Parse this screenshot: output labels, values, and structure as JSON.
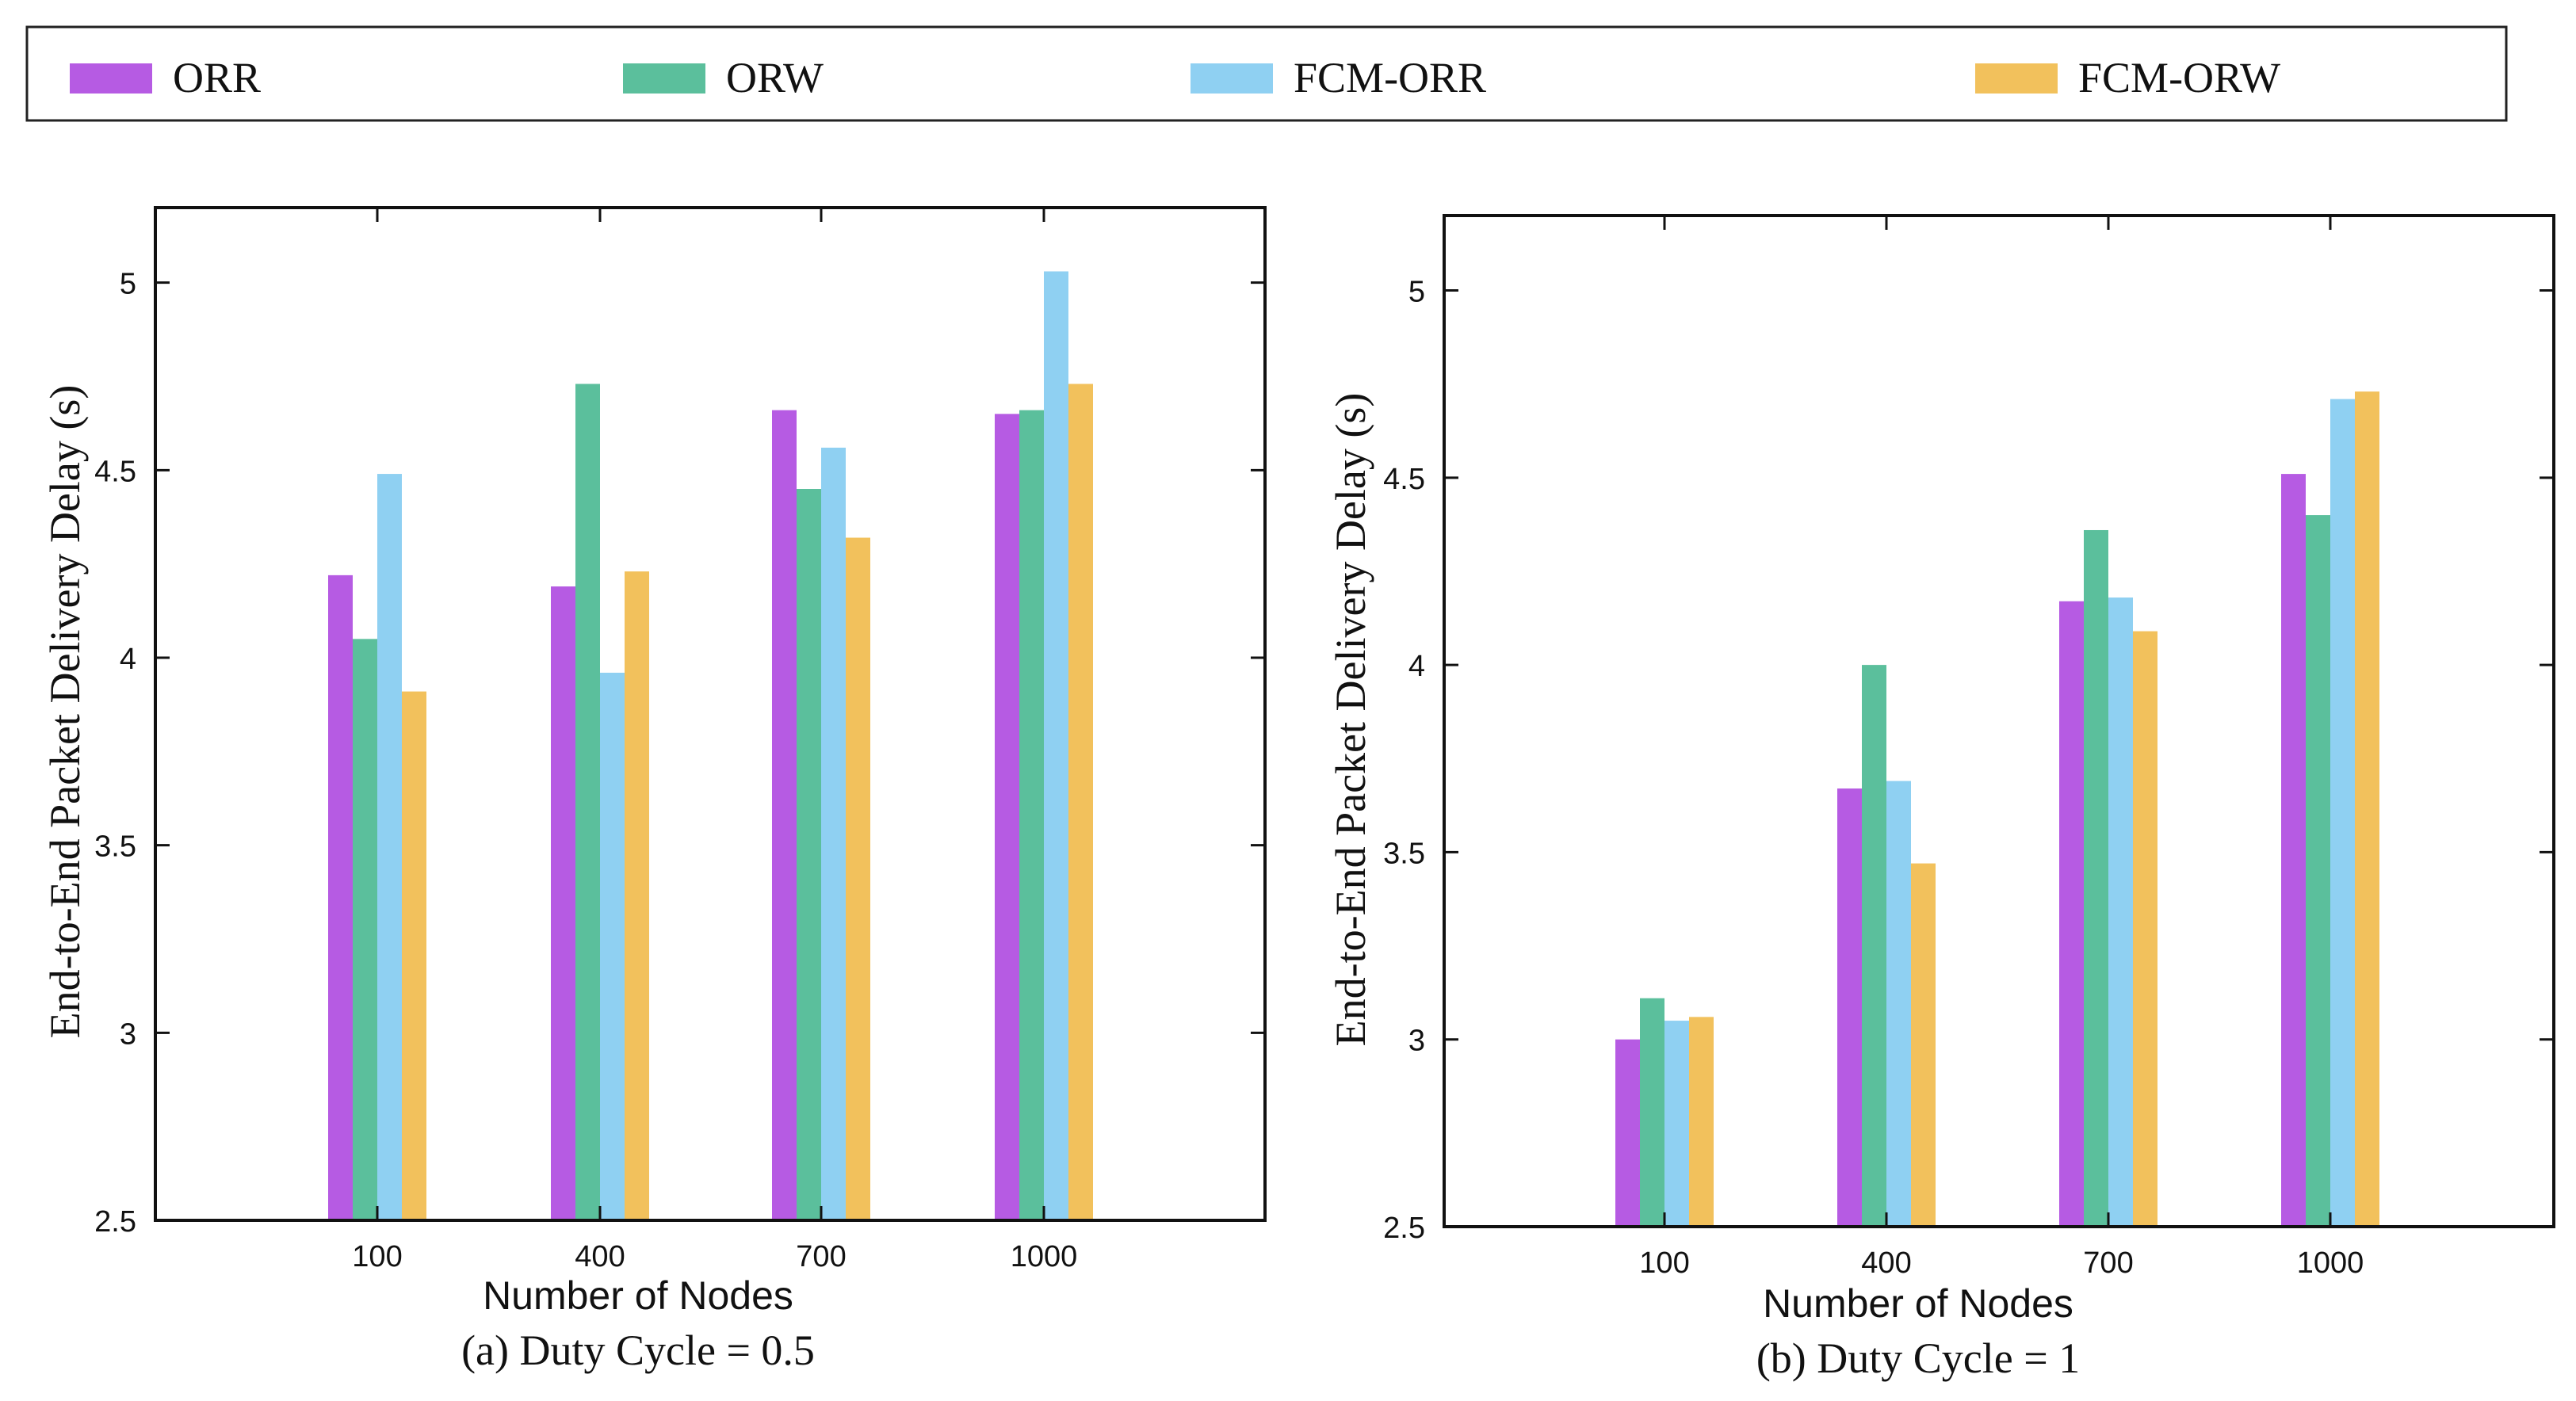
{
  "legend": {
    "items": [
      {
        "label": "ORR",
        "color": "#b65be3"
      },
      {
        "label": "ORW",
        "color": "#5bbf9c"
      },
      {
        "label": "FCM-ORR",
        "color": "#8fd0f2"
      },
      {
        "label": "FCM-ORW",
        "color": "#f2c15c"
      }
    ]
  },
  "chart_data": [
    {
      "type": "bar",
      "subtitle": "(a) Duty Cycle = 0.5",
      "xlabel": "Number of Nodes",
      "ylabel": "End-to-End Packet Delivery Delay (s)",
      "categories": [
        "100",
        "400",
        "700",
        "1000"
      ],
      "ylim": [
        2.5,
        5.2
      ],
      "yticks": [
        2.5,
        3,
        3.5,
        4,
        4.5,
        5
      ],
      "ytick_labels": [
        "2.5",
        "3",
        "3.5",
        "4",
        "4.5",
        "5"
      ],
      "series": [
        {
          "name": "ORR",
          "values": [
            4.22,
            4.19,
            4.66,
            4.65
          ]
        },
        {
          "name": "ORW",
          "values": [
            4.05,
            4.73,
            4.45,
            4.66
          ]
        },
        {
          "name": "FCM-ORR",
          "values": [
            4.49,
            3.96,
            4.56,
            5.03
          ]
        },
        {
          "name": "FCM-ORW",
          "values": [
            3.91,
            4.23,
            4.32,
            4.73
          ]
        }
      ]
    },
    {
      "type": "bar",
      "subtitle": "(b) Duty Cycle = 1",
      "xlabel": "Number of Nodes",
      "ylabel": "End-to-End Packet Delivery Delay (s)",
      "categories": [
        "100",
        "400",
        "700",
        "1000"
      ],
      "ylim": [
        2.5,
        5.2
      ],
      "yticks": [
        2.5,
        3,
        3.5,
        4,
        4.5,
        5
      ],
      "ytick_labels": [
        "2.5",
        "3",
        "3.5",
        "4",
        "4.5",
        "5"
      ],
      "series": [
        {
          "name": "ORR",
          "values": [
            3.0,
            3.67,
            4.17,
            4.51
          ]
        },
        {
          "name": "ORW",
          "values": [
            3.11,
            4.0,
            4.36,
            4.4
          ]
        },
        {
          "name": "FCM-ORR",
          "values": [
            3.05,
            3.69,
            4.18,
            4.71
          ]
        },
        {
          "name": "FCM-ORW",
          "values": [
            3.06,
            3.47,
            4.09,
            4.73
          ]
        }
      ]
    }
  ]
}
